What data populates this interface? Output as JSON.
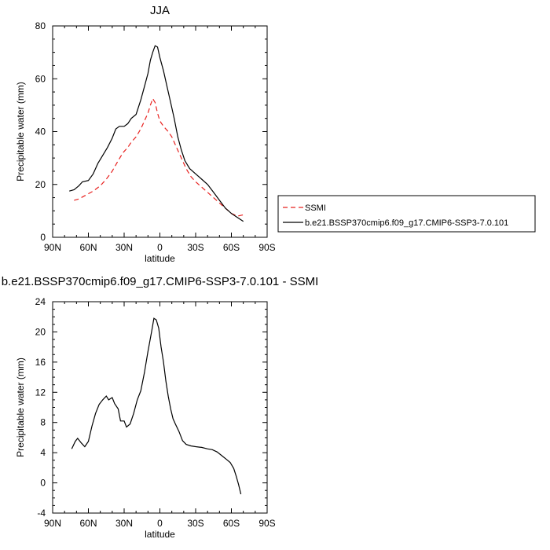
{
  "chart_data": [
    {
      "type": "line",
      "title": "JJA",
      "xlabel": "latitude",
      "ylabel": "Precipitable water (mm)",
      "xlim": [
        90,
        -90
      ],
      "ylim": [
        0,
        80
      ],
      "x_ticks": [
        90,
        60,
        30,
        0,
        -30,
        -60,
        -90
      ],
      "x_tick_labels": [
        "90N",
        "60N",
        "30N",
        "0",
        "30S",
        "60S",
        "90S"
      ],
      "y_ticks": [
        0,
        20,
        40,
        60,
        80
      ],
      "y_tick_labels": [
        "0",
        "20",
        "40",
        "60",
        "80"
      ],
      "legend_position": "right",
      "series": [
        {
          "name": "SSMI",
          "color": "#e8201e",
          "dash": "dashed",
          "points": [
            [
              72,
              14
            ],
            [
              68,
              14.5
            ],
            [
              62,
              16
            ],
            [
              56,
              17.5
            ],
            [
              50,
              19.5
            ],
            [
              45,
              22
            ],
            [
              40,
              25
            ],
            [
              35,
              29
            ],
            [
              31,
              32
            ],
            [
              27,
              34
            ],
            [
              24,
              36
            ],
            [
              20,
              38
            ],
            [
              16,
              41
            ],
            [
              13,
              44
            ],
            [
              10,
              47
            ],
            [
              8,
              50
            ],
            [
              6,
              52.5
            ],
            [
              4,
              51
            ],
            [
              2,
              47
            ],
            [
              0,
              44
            ],
            [
              -3,
              42
            ],
            [
              -7,
              40
            ],
            [
              -10,
              38
            ],
            [
              -14,
              34
            ],
            [
              -18,
              30
            ],
            [
              -22,
              26
            ],
            [
              -26,
              23
            ],
            [
              -30,
              21
            ],
            [
              -35,
              19
            ],
            [
              -40,
              17
            ],
            [
              -45,
              15
            ],
            [
              -50,
              13
            ],
            [
              -55,
              11
            ],
            [
              -60,
              9
            ],
            [
              -65,
              8
            ],
            [
              -70,
              8.5
            ]
          ]
        },
        {
          "name": "b.e21.BSSP370cmip6.f09_g17.CMIP6-SSP3-7.0.101",
          "color": "#000000",
          "dash": "solid",
          "points": [
            [
              76,
              17.5
            ],
            [
              72,
              18
            ],
            [
              68,
              19.5
            ],
            [
              65,
              21
            ],
            [
              60,
              21.5
            ],
            [
              56,
              24
            ],
            [
              52,
              28
            ],
            [
              48,
              31
            ],
            [
              44,
              34
            ],
            [
              40,
              37.5
            ],
            [
              37,
              41
            ],
            [
              34,
              42
            ],
            [
              30,
              42
            ],
            [
              27,
              43
            ],
            [
              24,
              45
            ],
            [
              20,
              46.5
            ],
            [
              16,
              52
            ],
            [
              13,
              57
            ],
            [
              10,
              62
            ],
            [
              8,
              67
            ],
            [
              6,
              70
            ],
            [
              4,
              72.5
            ],
            [
              2,
              72
            ],
            [
              0,
              68
            ],
            [
              -3,
              63
            ],
            [
              -6,
              57
            ],
            [
              -9,
              51
            ],
            [
              -12,
              45
            ],
            [
              -15,
              38
            ],
            [
              -18,
              33
            ],
            [
              -21,
              29
            ],
            [
              -25,
              26
            ],
            [
              -30,
              24
            ],
            [
              -35,
              22
            ],
            [
              -40,
              20
            ],
            [
              -45,
              17
            ],
            [
              -50,
              14
            ],
            [
              -55,
              11
            ],
            [
              -60,
              9
            ],
            [
              -65,
              7.5
            ],
            [
              -70,
              6
            ]
          ]
        }
      ]
    },
    {
      "type": "line",
      "title": "b.e21.BSSP370cmip6.f09_g17.CMIP6-SSP3-7.0.101 - SSMI",
      "xlabel": "latitude",
      "ylabel": "Precipitable water (mm)",
      "xlim": [
        90,
        -90
      ],
      "ylim": [
        -4,
        24
      ],
      "x_ticks": [
        90,
        60,
        30,
        0,
        -30,
        -60,
        -90
      ],
      "x_tick_labels": [
        "90N",
        "60N",
        "30N",
        "0",
        "30S",
        "60S",
        "90S"
      ],
      "y_ticks": [
        -4,
        0,
        4,
        8,
        12,
        16,
        20,
        24
      ],
      "y_tick_labels": [
        "-4",
        "0",
        "4",
        "8",
        "12",
        "16",
        "20",
        "24"
      ],
      "series": [
        {
          "color": "#000000",
          "dash": "solid",
          "points": [
            [
              74,
              4.5
            ],
            [
              71,
              5.5
            ],
            [
              69,
              5.9
            ],
            [
              66,
              5.3
            ],
            [
              63,
              4.8
            ],
            [
              60,
              5.5
            ],
            [
              57,
              7.5
            ],
            [
              54,
              9.2
            ],
            [
              51,
              10.4
            ],
            [
              48,
              11
            ],
            [
              45,
              11.5
            ],
            [
              43,
              11
            ],
            [
              40,
              11.3
            ],
            [
              38,
              10.5
            ],
            [
              35,
              9.8
            ],
            [
              33,
              8.2
            ],
            [
              30,
              8.2
            ],
            [
              28,
              7.4
            ],
            [
              25,
              7.8
            ],
            [
              22,
              9.2
            ],
            [
              19,
              11
            ],
            [
              16,
              12.2
            ],
            [
              13,
              14.6
            ],
            [
              10,
              17.4
            ],
            [
              7,
              20
            ],
            [
              5,
              21.8
            ],
            [
              3,
              21.6
            ],
            [
              1,
              20.5
            ],
            [
              -1,
              18
            ],
            [
              -3,
              16
            ],
            [
              -5,
              13.5
            ],
            [
              -7,
              11.5
            ],
            [
              -9,
              9.8
            ],
            [
              -11,
              8.5
            ],
            [
              -13,
              7.8
            ],
            [
              -16,
              6.8
            ],
            [
              -19,
              5.6
            ],
            [
              -22,
              5.1
            ],
            [
              -26,
              4.9
            ],
            [
              -30,
              4.8
            ],
            [
              -35,
              4.7
            ],
            [
              -40,
              4.5
            ],
            [
              -44,
              4.4
            ],
            [
              -48,
              4.1
            ],
            [
              -52,
              3.6
            ],
            [
              -56,
              3.1
            ],
            [
              -59,
              2.7
            ],
            [
              -62,
              1.9
            ],
            [
              -64,
              0.9
            ],
            [
              -66,
              -0.2
            ],
            [
              -68,
              -1.5
            ]
          ]
        }
      ]
    }
  ]
}
